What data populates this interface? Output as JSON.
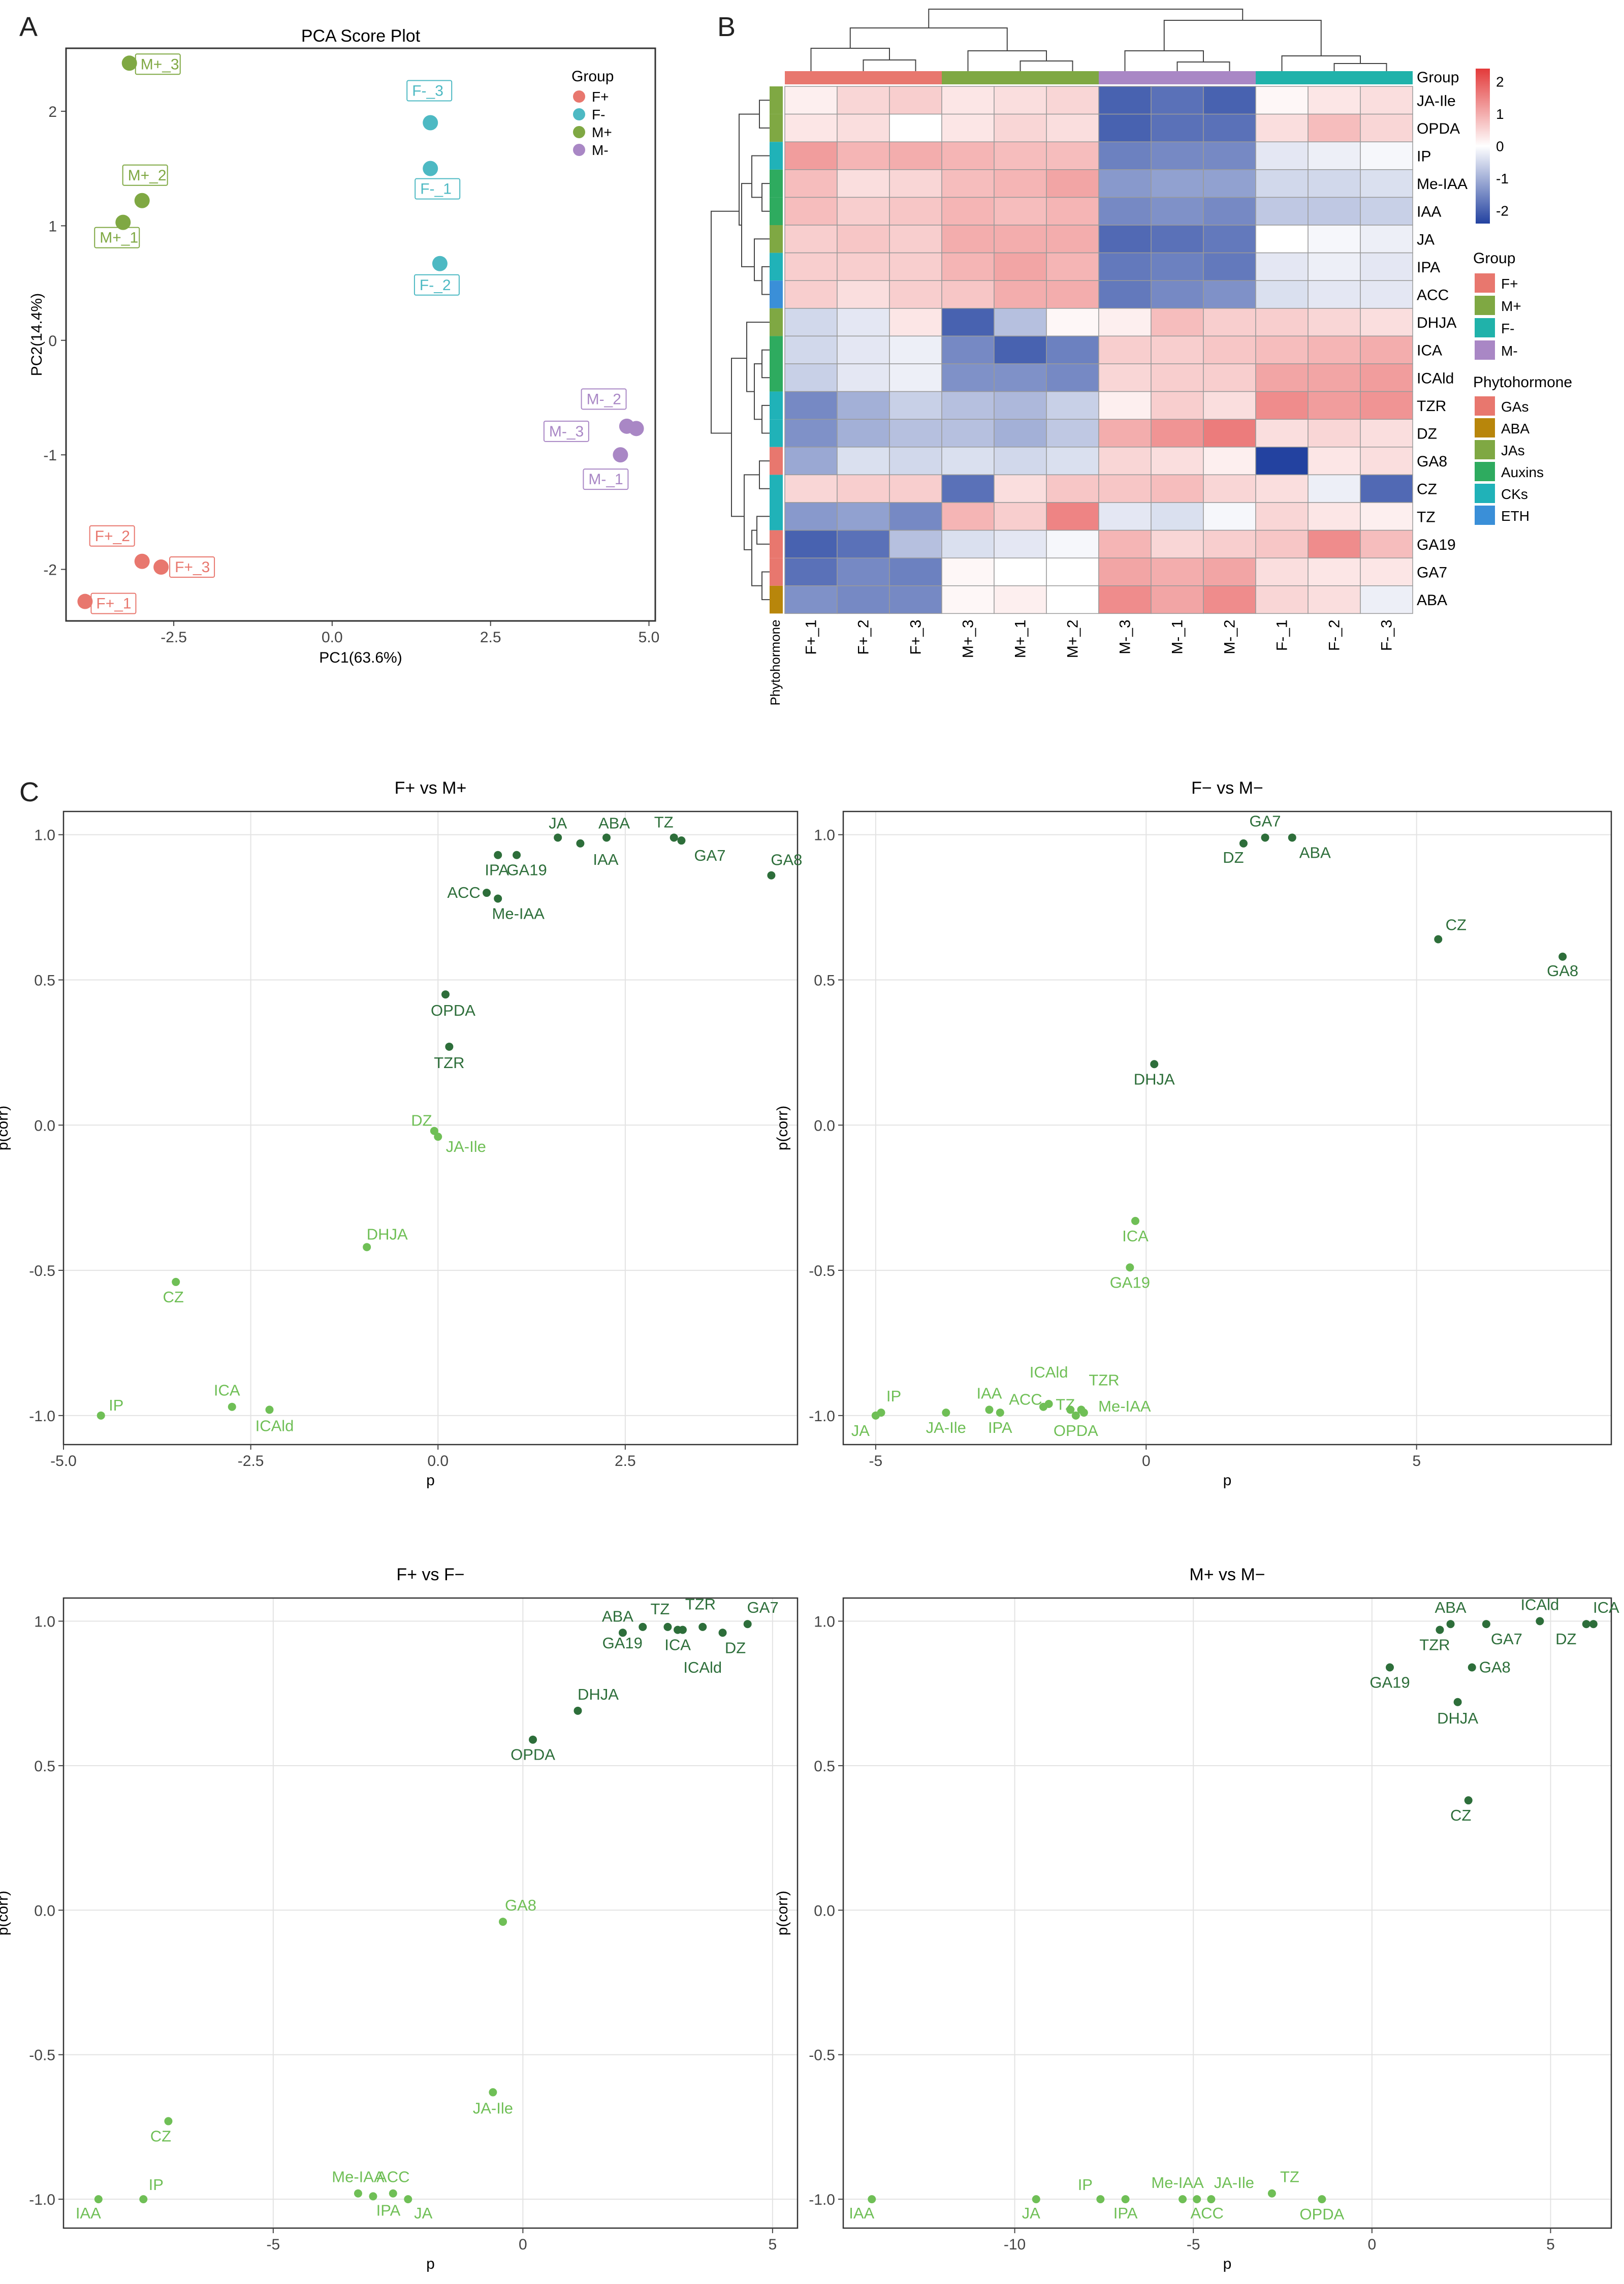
{
  "panel_letters": {
    "a": "A",
    "b": "B",
    "c": "C"
  },
  "chart_data": [
    {
      "id": "pca",
      "type": "scatter",
      "title": "PCA Score Plot",
      "xlabel": "PC1(63.6%)",
      "ylabel": "PC2(14.4%)",
      "xlim": [
        -4.2,
        5.1
      ],
      "ylim": [
        -2.45,
        2.55
      ],
      "xticks": [
        -2.5,
        0.0,
        2.5,
        5.0
      ],
      "xtick_labels": [
        "-2.5",
        "0.0",
        "2.5",
        "5.0"
      ],
      "yticks": [
        -2,
        -1,
        0,
        1,
        2
      ],
      "ytick_labels": [
        "-2",
        "-1",
        "0",
        "1",
        "2"
      ],
      "legend_title": "Group",
      "legend": [
        {
          "name": "F+",
          "color": "#E8776E"
        },
        {
          "name": "F-",
          "color": "#4DB9C3"
        },
        {
          "name": "M+",
          "color": "#7FA843"
        },
        {
          "name": "M-",
          "color": "#A987C5"
        }
      ],
      "points": [
        {
          "label": "M+_3",
          "group": "M+",
          "x": -3.2,
          "y": 2.42
        },
        {
          "label": "M+_2",
          "group": "M+",
          "x": -3.0,
          "y": 1.22
        },
        {
          "label": "M+_1",
          "group": "M+",
          "x": -3.3,
          "y": 1.03
        },
        {
          "label": "F-_3",
          "group": "F-",
          "x": 1.55,
          "y": 1.9
        },
        {
          "label": "F-_1",
          "group": "F-",
          "x": 1.55,
          "y": 1.5
        },
        {
          "label": "F-_2",
          "group": "F-",
          "x": 1.7,
          "y": 0.67
        },
        {
          "label": "M-_2",
          "group": "M-",
          "x": 4.8,
          "y": -0.77
        },
        {
          "label": "M-_3",
          "group": "M-",
          "x": 4.65,
          "y": -0.75
        },
        {
          "label": "M-_1",
          "group": "M-",
          "x": 4.55,
          "y": -1.0
        },
        {
          "label": "F+_2",
          "group": "F+",
          "x": -3.0,
          "y": -1.93
        },
        {
          "label": "F+_3",
          "group": "F+",
          "x": -2.7,
          "y": -1.98
        },
        {
          "label": "F+_1",
          "group": "F+",
          "x": -3.9,
          "y": -2.28
        }
      ]
    },
    {
      "id": "heatmap",
      "type": "heatmap",
      "columns": [
        "F+_1",
        "F+_2",
        "F+_3",
        "M+_3",
        "M+_1",
        "M+_2",
        "M-_3",
        "M-_1",
        "M-_2",
        "F-_1",
        "F-_2",
        "F-_3"
      ],
      "column_groups": [
        "F+",
        "F+",
        "F+",
        "M+",
        "M+",
        "M+",
        "M-",
        "M-",
        "M-",
        "F-",
        "F-",
        "F-"
      ],
      "group_label": "Group",
      "annotation_label": "Phytohormone",
      "rows": [
        "JA-Ile",
        "OPDA",
        "IP",
        "Me-IAA",
        "IAA",
        "JA",
        "IPA",
        "ACC",
        "DHJA",
        "ICA",
        "ICAld",
        "TZR",
        "DZ",
        "GA8",
        "CZ",
        "TZ",
        "GA19",
        "GA7",
        "ABA"
      ],
      "row_classes": [
        "JAs",
        "JAs",
        "CKs",
        "Auxins",
        "Auxins",
        "JAs",
        "CKs",
        "ETH",
        "JAs",
        "Auxins",
        "Auxins",
        "CKs",
        "CKs",
        "GAs",
        "CKs",
        "CKs",
        "GAs",
        "GAs",
        "ABA"
      ],
      "values": [
        [
          0.2,
          0.5,
          0.6,
          0.3,
          0.4,
          0.5,
          -2.0,
          -1.8,
          -2.0,
          0.1,
          0.3,
          0.4
        ],
        [
          0.3,
          0.4,
          0.0,
          0.3,
          0.5,
          0.4,
          -2.0,
          -1.8,
          -1.8,
          0.4,
          0.8,
          0.5
        ],
        [
          1.2,
          0.9,
          1.0,
          0.9,
          0.8,
          0.8,
          -1.6,
          -1.5,
          -1.5,
          -0.3,
          -0.2,
          -0.1
        ],
        [
          0.8,
          0.4,
          0.5,
          0.8,
          0.9,
          1.1,
          -1.3,
          -1.2,
          -1.2,
          -0.5,
          -0.5,
          -0.4
        ],
        [
          0.8,
          0.6,
          0.7,
          0.9,
          0.8,
          0.9,
          -1.5,
          -1.4,
          -1.5,
          -0.7,
          -0.7,
          -0.6
        ],
        [
          0.6,
          0.7,
          0.6,
          1.0,
          1.0,
          1.0,
          -1.9,
          -1.8,
          -1.7,
          0.0,
          -0.1,
          -0.2
        ],
        [
          0.6,
          0.6,
          0.6,
          0.9,
          1.1,
          0.9,
          -1.7,
          -1.6,
          -1.7,
          -0.3,
          -0.2,
          -0.3
        ],
        [
          0.6,
          0.4,
          0.6,
          0.7,
          1.0,
          1.0,
          -1.7,
          -1.5,
          -1.4,
          -0.4,
          -0.3,
          -0.3
        ],
        [
          -0.5,
          -0.3,
          0.3,
          -2.0,
          -0.8,
          0.1,
          0.2,
          0.8,
          0.6,
          0.6,
          0.5,
          0.4
        ],
        [
          -0.5,
          -0.3,
          -0.2,
          -1.5,
          -2.0,
          -1.6,
          0.6,
          0.6,
          0.7,
          0.8,
          0.9,
          1.0
        ],
        [
          -0.6,
          -0.3,
          -0.2,
          -1.4,
          -1.4,
          -1.5,
          0.5,
          0.6,
          0.6,
          1.1,
          1.1,
          1.2
        ],
        [
          -1.5,
          -1.0,
          -0.6,
          -0.8,
          -0.9,
          -0.6,
          0.2,
          0.6,
          0.4,
          1.4,
          1.2,
          1.3
        ],
        [
          -1.4,
          -1.0,
          -0.8,
          -0.8,
          -1.0,
          -0.7,
          1.0,
          1.3,
          1.6,
          0.4,
          0.5,
          0.4
        ],
        [
          -1.1,
          -0.4,
          -0.5,
          -0.4,
          -0.5,
          -0.4,
          0.5,
          0.4,
          0.2,
          -2.4,
          0.3,
          0.4
        ],
        [
          0.5,
          0.6,
          0.6,
          -1.8,
          0.4,
          0.7,
          0.7,
          0.8,
          0.5,
          0.4,
          -0.2,
          -1.9
        ],
        [
          -1.3,
          -1.2,
          -1.5,
          0.9,
          0.6,
          1.5,
          -0.3,
          -0.4,
          -0.1,
          0.5,
          0.3,
          0.2
        ],
        [
          -2.0,
          -1.8,
          -0.8,
          -0.4,
          -0.3,
          -0.1,
          0.9,
          0.5,
          0.6,
          0.7,
          1.4,
          0.8
        ],
        [
          -1.8,
          -1.5,
          -1.6,
          0.1,
          0.0,
          0.0,
          1.1,
          1.0,
          1.1,
          0.4,
          0.3,
          0.3
        ],
        [
          -1.4,
          -1.5,
          -1.5,
          0.1,
          0.2,
          0.0,
          1.4,
          1.1,
          1.4,
          0.5,
          0.4,
          -0.2
        ]
      ],
      "colorbar": {
        "min": -2.4,
        "max": 2.4,
        "ticks": [
          2,
          1,
          0,
          -1,
          -2
        ],
        "tick_labels": [
          "2",
          "1",
          "0",
          "-1",
          "-2"
        ],
        "low": "#2342A0",
        "mid": "#FFFFFF",
        "high": "#E33A3A"
      },
      "group_legend_title": "Group",
      "group_legend": [
        {
          "name": "F+",
          "color": "#E8776E"
        },
        {
          "name": "M+",
          "color": "#7FA843"
        },
        {
          "name": "F-",
          "color": "#20B2AA"
        },
        {
          "name": "M-",
          "color": "#A987C5"
        }
      ],
      "class_legend_title": "Phytohormone",
      "class_legend": [
        {
          "name": "GAs",
          "color": "#E8776E"
        },
        {
          "name": "ABA",
          "color": "#B8860B"
        },
        {
          "name": "JAs",
          "color": "#7FA843"
        },
        {
          "name": "Auxins",
          "color": "#2EAB5F"
        },
        {
          "name": "CKs",
          "color": "#20B2B8"
        },
        {
          "name": "ETH",
          "color": "#3A8FD8"
        }
      ]
    },
    {
      "id": "splot_fp_mp",
      "type": "scatter",
      "title": "F+ vs M+",
      "xlabel": "p",
      "ylabel": "p(corr)",
      "xlim": [
        -5.0,
        4.8
      ],
      "ylim": [
        -1.1,
        1.08
      ],
      "xticks": [
        -5.0,
        -2.5,
        0.0,
        2.5
      ],
      "xtick_labels": [
        "-5.0",
        "-2.5",
        "0.0",
        "2.5"
      ],
      "yticks": [
        1.0,
        0.5,
        0.0,
        -0.5,
        -1.0
      ],
      "ytick_labels": [
        "1.0",
        "0.5",
        "0.0",
        "-0.5",
        "-1.0"
      ],
      "points": [
        {
          "label": "JA",
          "x": 1.6,
          "y": 0.99,
          "pos": true
        },
        {
          "label": "ABA",
          "x": 2.25,
          "y": 0.99,
          "pos": true
        },
        {
          "label": "TZ",
          "x": 3.15,
          "y": 0.99,
          "pos": true
        },
        {
          "label": "GA7",
          "x": 3.25,
          "y": 0.98,
          "pos": true
        },
        {
          "label": "IAA",
          "x": 1.9,
          "y": 0.97,
          "pos": true
        },
        {
          "label": "GA19",
          "x": 1.05,
          "y": 0.93,
          "pos": true
        },
        {
          "label": "IPA",
          "x": 0.8,
          "y": 0.93,
          "pos": true
        },
        {
          "label": "GA8",
          "x": 4.45,
          "y": 0.86,
          "pos": true
        },
        {
          "label": "ACC",
          "x": 0.65,
          "y": 0.8,
          "pos": true
        },
        {
          "label": "Me-IAA",
          "x": 0.8,
          "y": 0.78,
          "pos": true
        },
        {
          "label": "OPDA",
          "x": 0.1,
          "y": 0.45,
          "pos": true
        },
        {
          "label": "TZR",
          "x": 0.15,
          "y": 0.27,
          "pos": true
        },
        {
          "label": "DZ",
          "x": -0.05,
          "y": -0.02,
          "pos": false
        },
        {
          "label": "JA-Ile",
          "x": 0.0,
          "y": -0.04,
          "pos": false
        },
        {
          "label": "DHJA",
          "x": -0.95,
          "y": -0.42,
          "pos": false
        },
        {
          "label": "CZ",
          "x": -3.5,
          "y": -0.54,
          "pos": false
        },
        {
          "label": "ICA",
          "x": -2.75,
          "y": -0.97,
          "pos": false
        },
        {
          "label": "ICAld",
          "x": -2.25,
          "y": -0.98,
          "pos": false
        },
        {
          "label": "IP",
          "x": -4.5,
          "y": -1.0,
          "pos": false
        }
      ]
    },
    {
      "id": "splot_fm_mm",
      "type": "scatter",
      "title": "F− vs M−",
      "xlabel": "p",
      "ylabel": "p(corr)",
      "xlim": [
        -5.6,
        8.6
      ],
      "ylim": [
        -1.1,
        1.08
      ],
      "xticks": [
        -5,
        0,
        5
      ],
      "xtick_labels": [
        "-5",
        "0",
        "5"
      ],
      "yticks": [
        1.0,
        0.5,
        0.0,
        -0.5,
        -1.0
      ],
      "ytick_labels": [
        "1.0",
        "0.5",
        "0.0",
        "-0.5",
        "-1.0"
      ],
      "points": [
        {
          "label": "GA7",
          "x": 2.2,
          "y": 0.99,
          "pos": true
        },
        {
          "label": "ABA",
          "x": 2.7,
          "y": 0.99,
          "pos": true
        },
        {
          "label": "DZ",
          "x": 1.8,
          "y": 0.97,
          "pos": true
        },
        {
          "label": "CZ",
          "x": 5.4,
          "y": 0.64,
          "pos": true
        },
        {
          "label": "GA8",
          "x": 7.7,
          "y": 0.58,
          "pos": true
        },
        {
          "label": "DHJA",
          "x": 0.15,
          "y": 0.21,
          "pos": true
        },
        {
          "label": "ICA",
          "x": -0.2,
          "y": -0.33,
          "pos": false
        },
        {
          "label": "GA19",
          "x": -0.3,
          "y": -0.49,
          "pos": false
        },
        {
          "label": "IP",
          "x": -4.9,
          "y": -0.99,
          "pos": false
        },
        {
          "label": "JA",
          "x": -5.0,
          "y": -1.0,
          "pos": false
        },
        {
          "label": "JA-Ile",
          "x": -3.7,
          "y": -0.99,
          "pos": false
        },
        {
          "label": "IAA",
          "x": -2.9,
          "y": -0.98,
          "pos": false
        },
        {
          "label": "IPA",
          "x": -2.7,
          "y": -0.99,
          "pos": false
        },
        {
          "label": "ACC",
          "x": -1.9,
          "y": -0.97,
          "pos": false
        },
        {
          "label": "ICAld",
          "x": -1.8,
          "y": -0.96,
          "pos": false
        },
        {
          "label": "TZ",
          "x": -1.4,
          "y": -0.98,
          "pos": false
        },
        {
          "label": "TZR",
          "x": -1.2,
          "y": -0.98,
          "pos": false
        },
        {
          "label": "Me-IAA",
          "x": -1.15,
          "y": -0.99,
          "pos": false
        },
        {
          "label": "OPDA",
          "x": -1.3,
          "y": -1.0,
          "pos": false
        }
      ]
    },
    {
      "id": "splot_fp_fm",
      "type": "scatter",
      "title": "F+ vs F−",
      "xlabel": "p",
      "ylabel": "p(corr)",
      "xlim": [
        -9.2,
        5.5
      ],
      "ylim": [
        -1.1,
        1.08
      ],
      "xticks": [
        -5,
        0,
        5
      ],
      "xtick_labels": [
        "-5",
        "0",
        "5"
      ],
      "yticks": [
        1.0,
        0.5,
        0.0,
        -0.5,
        -1.0
      ],
      "ytick_labels": [
        "1.0",
        "0.5",
        "0.0",
        "-0.5",
        "-1.0"
      ],
      "points": [
        {
          "label": "ABA",
          "x": 2.0,
          "y": 0.96,
          "pos": true
        },
        {
          "label": "TZ",
          "x": 2.9,
          "y": 0.98,
          "pos": true
        },
        {
          "label": "TZR",
          "x": 3.2,
          "y": 0.97,
          "pos": true
        },
        {
          "label": "GA7",
          "x": 4.5,
          "y": 0.99,
          "pos": true
        },
        {
          "label": "GA19",
          "x": 2.4,
          "y": 0.98,
          "pos": true
        },
        {
          "label": "ICA",
          "x": 3.1,
          "y": 0.97,
          "pos": true
        },
        {
          "label": "ICAld",
          "x": 3.6,
          "y": 0.98,
          "pos": true
        },
        {
          "label": "DZ",
          "x": 4.0,
          "y": 0.96,
          "pos": true
        },
        {
          "label": "DHJA",
          "x": 1.1,
          "y": 0.69,
          "pos": true
        },
        {
          "label": "OPDA",
          "x": 0.2,
          "y": 0.59,
          "pos": true
        },
        {
          "label": "GA8",
          "x": -0.4,
          "y": -0.04,
          "pos": false
        },
        {
          "label": "JA-Ile",
          "x": -0.6,
          "y": -0.63,
          "pos": false
        },
        {
          "label": "CZ",
          "x": -7.1,
          "y": -0.73,
          "pos": false
        },
        {
          "label": "IAA",
          "x": -8.5,
          "y": -1.0,
          "pos": false
        },
        {
          "label": "IP",
          "x": -7.6,
          "y": -1.0,
          "pos": false
        },
        {
          "label": "Me-IAA",
          "x": -3.3,
          "y": -0.98,
          "pos": false
        },
        {
          "label": "IPA",
          "x": -3.0,
          "y": -0.99,
          "pos": false
        },
        {
          "label": "ACC",
          "x": -2.6,
          "y": -0.98,
          "pos": false
        },
        {
          "label": "JA",
          "x": -2.3,
          "y": -1.0,
          "pos": false
        }
      ]
    },
    {
      "id": "splot_mp_mm",
      "type": "scatter",
      "title": "M+ vs M−",
      "xlabel": "p",
      "ylabel": "p(corr)",
      "xlim": [
        -14.8,
        6.7
      ],
      "ylim": [
        -1.1,
        1.08
      ],
      "xticks": [
        -10,
        -5,
        0,
        5
      ],
      "xtick_labels": [
        "-10",
        "-5",
        "0",
        "5"
      ],
      "yticks": [
        1.0,
        0.5,
        0.0,
        -0.5,
        -1.0
      ],
      "ytick_labels": [
        "1.0",
        "0.5",
        "0.0",
        "-0.5",
        "-1.0"
      ],
      "points": [
        {
          "label": "ABA",
          "x": 2.2,
          "y": 0.99,
          "pos": true
        },
        {
          "label": "ICAld",
          "x": 4.7,
          "y": 1.0,
          "pos": true
        },
        {
          "label": "ICA",
          "x": 6.2,
          "y": 0.99,
          "pos": true
        },
        {
          "label": "DZ",
          "x": 6.0,
          "y": 0.99,
          "pos": true
        },
        {
          "label": "TZR",
          "x": 1.9,
          "y": 0.97,
          "pos": true
        },
        {
          "label": "GA7",
          "x": 3.2,
          "y": 0.99,
          "pos": true
        },
        {
          "label": "GA19",
          "x": 0.5,
          "y": 0.84,
          "pos": true
        },
        {
          "label": "GA8",
          "x": 2.8,
          "y": 0.84,
          "pos": true
        },
        {
          "label": "DHJA",
          "x": 2.4,
          "y": 0.72,
          "pos": true
        },
        {
          "label": "CZ",
          "x": 2.7,
          "y": 0.38,
          "pos": true
        },
        {
          "label": "IAA",
          "x": -14.0,
          "y": -1.0,
          "pos": false
        },
        {
          "label": "JA",
          "x": -9.4,
          "y": -1.0,
          "pos": false
        },
        {
          "label": "IP",
          "x": -7.6,
          "y": -1.0,
          "pos": false
        },
        {
          "label": "IPA",
          "x": -6.9,
          "y": -1.0,
          "pos": false
        },
        {
          "label": "Me-IAA",
          "x": -5.3,
          "y": -1.0,
          "pos": false
        },
        {
          "label": "ACC",
          "x": -4.9,
          "y": -1.0,
          "pos": false
        },
        {
          "label": "JA-Ile",
          "x": -4.5,
          "y": -1.0,
          "pos": false
        },
        {
          "label": "TZ",
          "x": -2.8,
          "y": -0.98,
          "pos": false
        },
        {
          "label": "OPDA",
          "x": -1.4,
          "y": -1.0,
          "pos": false
        }
      ]
    }
  ]
}
